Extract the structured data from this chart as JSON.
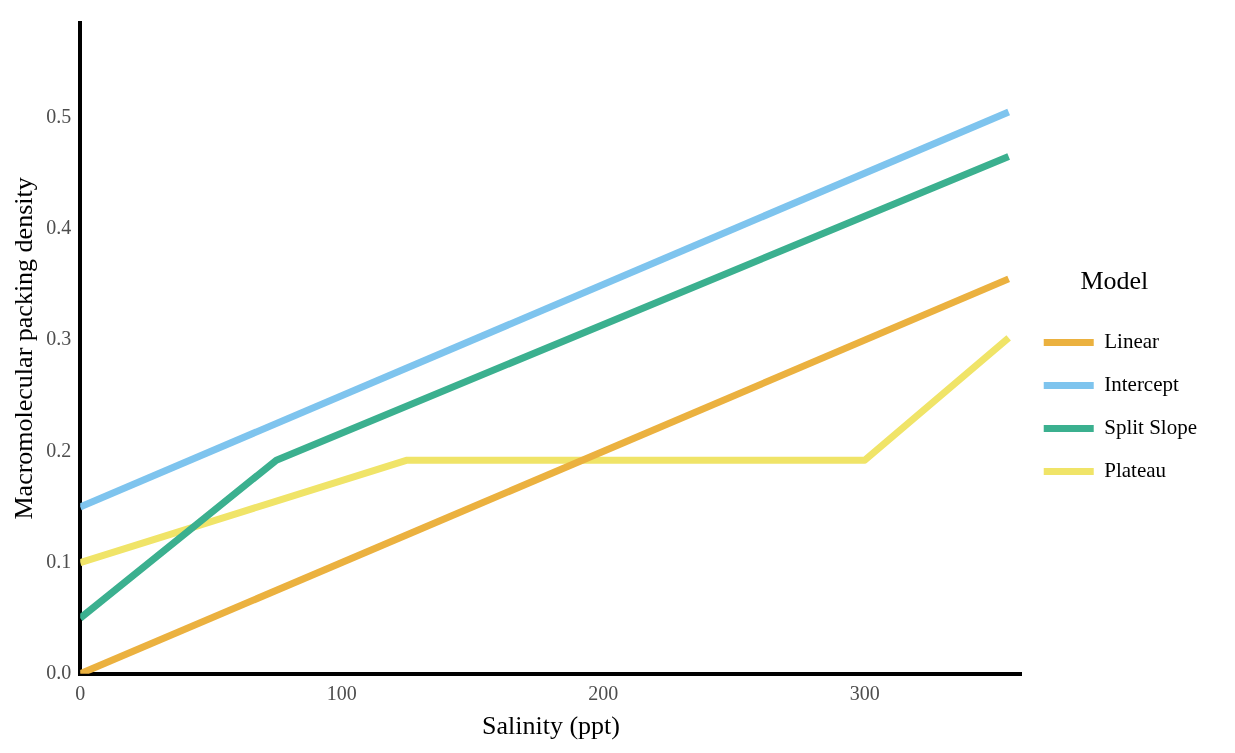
{
  "chart_data": {
    "type": "line",
    "xlabel": "Salinity (ppt)",
    "ylabel": "Macromolecular packing density",
    "legend_title": "Model",
    "legend": "right",
    "grid": false,
    "marker": "none",
    "line_style": "solid",
    "xlim": [
      0,
      360
    ],
    "xticks": [
      0,
      100,
      200,
      300
    ],
    "ylim": [
      0,
      0.585
    ],
    "yticks": [
      {
        "value": 0,
        "label": "0.0"
      },
      {
        "value": 0.1,
        "label": "0.1"
      },
      {
        "value": 0.2,
        "label": "0.2"
      },
      {
        "value": 0.3,
        "label": "0.3"
      },
      {
        "value": 0.4,
        "label": "0.4"
      },
      {
        "value": 0.5,
        "label": "0.5"
      }
    ],
    "series": [
      {
        "name": "Linear",
        "color": "#ebb13f",
        "x": [
          0,
          355
        ],
        "values": [
          0,
          0.355
        ]
      },
      {
        "name": "Intercept",
        "color": "#7ec4ee",
        "x": [
          0,
          355
        ],
        "values": [
          0.15,
          0.505
        ]
      },
      {
        "name": "Split Slope",
        "color": "#3bb08f",
        "x": [
          0,
          75,
          355
        ],
        "values": [
          0.05,
          0.192,
          0.465
        ]
      },
      {
        "name": "Plateau",
        "color": "#f0e468",
        "x": [
          0,
          125,
          300,
          355
        ],
        "values": [
          0.1,
          0.192,
          0.192,
          0.302
        ]
      }
    ]
  }
}
